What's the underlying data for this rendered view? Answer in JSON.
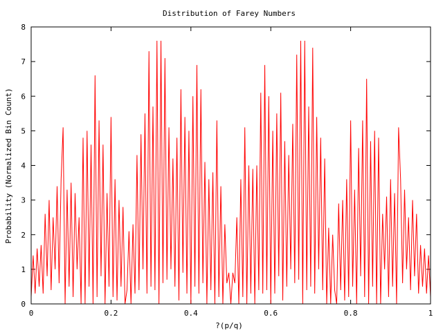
{
  "chart_data": {
    "type": "line",
    "title": "Distribution of Farey Numbers",
    "xlabel": "?(p/q)",
    "ylabel": "Probability (Normalized Bin Count)",
    "xlim": [
      0,
      1
    ],
    "ylim": [
      0,
      8
    ],
    "x_ticks": [
      "0",
      "0.2",
      "0.4",
      "0.6",
      "0.8",
      "1"
    ],
    "y_ticks": [
      "0",
      "1",
      "2",
      "3",
      "4",
      "5",
      "6",
      "7",
      "8"
    ],
    "grid": false,
    "legend": "none",
    "series_color": "#ff0000",
    "series": [
      {
        "x": [
          0.0,
          0.005,
          0.01,
          0.015,
          0.02,
          0.025,
          0.03,
          0.035,
          0.04,
          0.045,
          0.05,
          0.055,
          0.06,
          0.065,
          0.07,
          0.075,
          0.08,
          0.085,
          0.09,
          0.095,
          0.1,
          0.105,
          0.11,
          0.115,
          0.12,
          0.125,
          0.13,
          0.135,
          0.14,
          0.145,
          0.15,
          0.155,
          0.16,
          0.165,
          0.17,
          0.175,
          0.18,
          0.185,
          0.19,
          0.195,
          0.2,
          0.205,
          0.21,
          0.215,
          0.22,
          0.225,
          0.23,
          0.235,
          0.24,
          0.245,
          0.25,
          0.255,
          0.26,
          0.265,
          0.27,
          0.275,
          0.28,
          0.285,
          0.29,
          0.295,
          0.3,
          0.305,
          0.31,
          0.315,
          0.32,
          0.325,
          0.33,
          0.335,
          0.34,
          0.345,
          0.35,
          0.355,
          0.36,
          0.365,
          0.37,
          0.375,
          0.38,
          0.385,
          0.39,
          0.395,
          0.4,
          0.405,
          0.41,
          0.415,
          0.42,
          0.425,
          0.43,
          0.435,
          0.44,
          0.445,
          0.45,
          0.455,
          0.46,
          0.465,
          0.47,
          0.475,
          0.48,
          0.485,
          0.49,
          0.495,
          0.5,
          0.505,
          0.51,
          0.515,
          0.52,
          0.525,
          0.53,
          0.535,
          0.54,
          0.545,
          0.55,
          0.555,
          0.56,
          0.565,
          0.57,
          0.575,
          0.58,
          0.585,
          0.59,
          0.595,
          0.6,
          0.605,
          0.61,
          0.615,
          0.62,
          0.625,
          0.63,
          0.635,
          0.64,
          0.645,
          0.65,
          0.655,
          0.66,
          0.665,
          0.67,
          0.675,
          0.68,
          0.685,
          0.69,
          0.695,
          0.7,
          0.705,
          0.71,
          0.715,
          0.72,
          0.725,
          0.73,
          0.735,
          0.74,
          0.745,
          0.75,
          0.755,
          0.76,
          0.765,
          0.77,
          0.775,
          0.78,
          0.785,
          0.79,
          0.795,
          0.8,
          0.805,
          0.81,
          0.815,
          0.82,
          0.825,
          0.83,
          0.835,
          0.84,
          0.845,
          0.85,
          0.855,
          0.86,
          0.865,
          0.87,
          0.875,
          0.88,
          0.885,
          0.89,
          0.895,
          0.9,
          0.905,
          0.91,
          0.915,
          0.92,
          0.925,
          0.93,
          0.935,
          0.94,
          0.945,
          0.95,
          0.955,
          0.96,
          0.965,
          0.97,
          0.975,
          0.98,
          0.985,
          0.99,
          0.995,
          1.0
        ],
        "y": [
          0.2,
          1.4,
          0.3,
          1.6,
          0.5,
          1.7,
          0.3,
          2.6,
          0.8,
          3.0,
          0.4,
          2.5,
          1.0,
          3.4,
          0.6,
          3.6,
          5.1,
          0.0,
          3.3,
          0.5,
          3.5,
          0.2,
          3.2,
          1.0,
          2.5,
          0.0,
          4.8,
          0.0,
          5.0,
          0.5,
          4.6,
          0.0,
          6.6,
          0.2,
          5.3,
          0.8,
          4.6,
          0.0,
          3.2,
          0.5,
          5.4,
          0.2,
          3.6,
          0.1,
          3.0,
          0.5,
          2.8,
          0.0,
          0.4,
          2.1,
          0.0,
          2.3,
          0.3,
          4.3,
          0.4,
          4.9,
          1.0,
          5.5,
          0.3,
          7.3,
          0.5,
          5.7,
          0.4,
          7.6,
          0.0,
          7.6,
          0.6,
          7.1,
          0.7,
          5.1,
          1.0,
          4.2,
          0.5,
          4.8,
          0.1,
          6.2,
          0.9,
          5.4,
          0.3,
          5.0,
          0.0,
          6.0,
          0.5,
          6.9,
          0.3,
          6.2,
          0.6,
          4.1,
          0.0,
          3.6,
          0.4,
          3.8,
          0.0,
          5.3,
          0.2,
          3.4,
          0.0,
          2.3,
          0.6,
          0.9,
          0.0,
          0.9,
          0.6,
          2.5,
          0.0,
          3.6,
          0.2,
          5.1,
          0.0,
          4.0,
          0.3,
          3.9,
          0.0,
          4.0,
          0.4,
          6.1,
          0.3,
          6.9,
          0.4,
          6.0,
          0.0,
          5.0,
          0.3,
          5.5,
          0.8,
          6.1,
          0.1,
          4.7,
          0.5,
          4.3,
          1.0,
          5.2,
          0.6,
          7.2,
          0.7,
          7.6,
          0.0,
          7.6,
          0.4,
          5.7,
          0.5,
          7.4,
          0.3,
          5.4,
          1.0,
          4.8,
          0.4,
          4.2,
          0.0,
          2.2,
          0.0,
          2.0,
          0.4,
          0.0,
          2.9,
          0.4,
          3.0,
          0.1,
          3.6,
          0.2,
          5.3,
          0.5,
          3.3,
          0.0,
          4.5,
          0.8,
          5.3,
          0.2,
          6.5,
          0.0,
          4.7,
          0.5,
          5.0,
          0.0,
          4.8,
          0.0,
          2.6,
          1.0,
          3.1,
          0.2,
          3.6,
          0.5,
          3.2,
          0.0,
          5.1,
          3.6,
          0.6,
          3.3,
          1.0,
          2.5,
          0.4,
          3.0,
          0.8,
          2.6,
          0.3,
          1.7,
          0.5,
          1.6,
          0.3,
          1.4,
          0.2
        ]
      }
    ]
  }
}
